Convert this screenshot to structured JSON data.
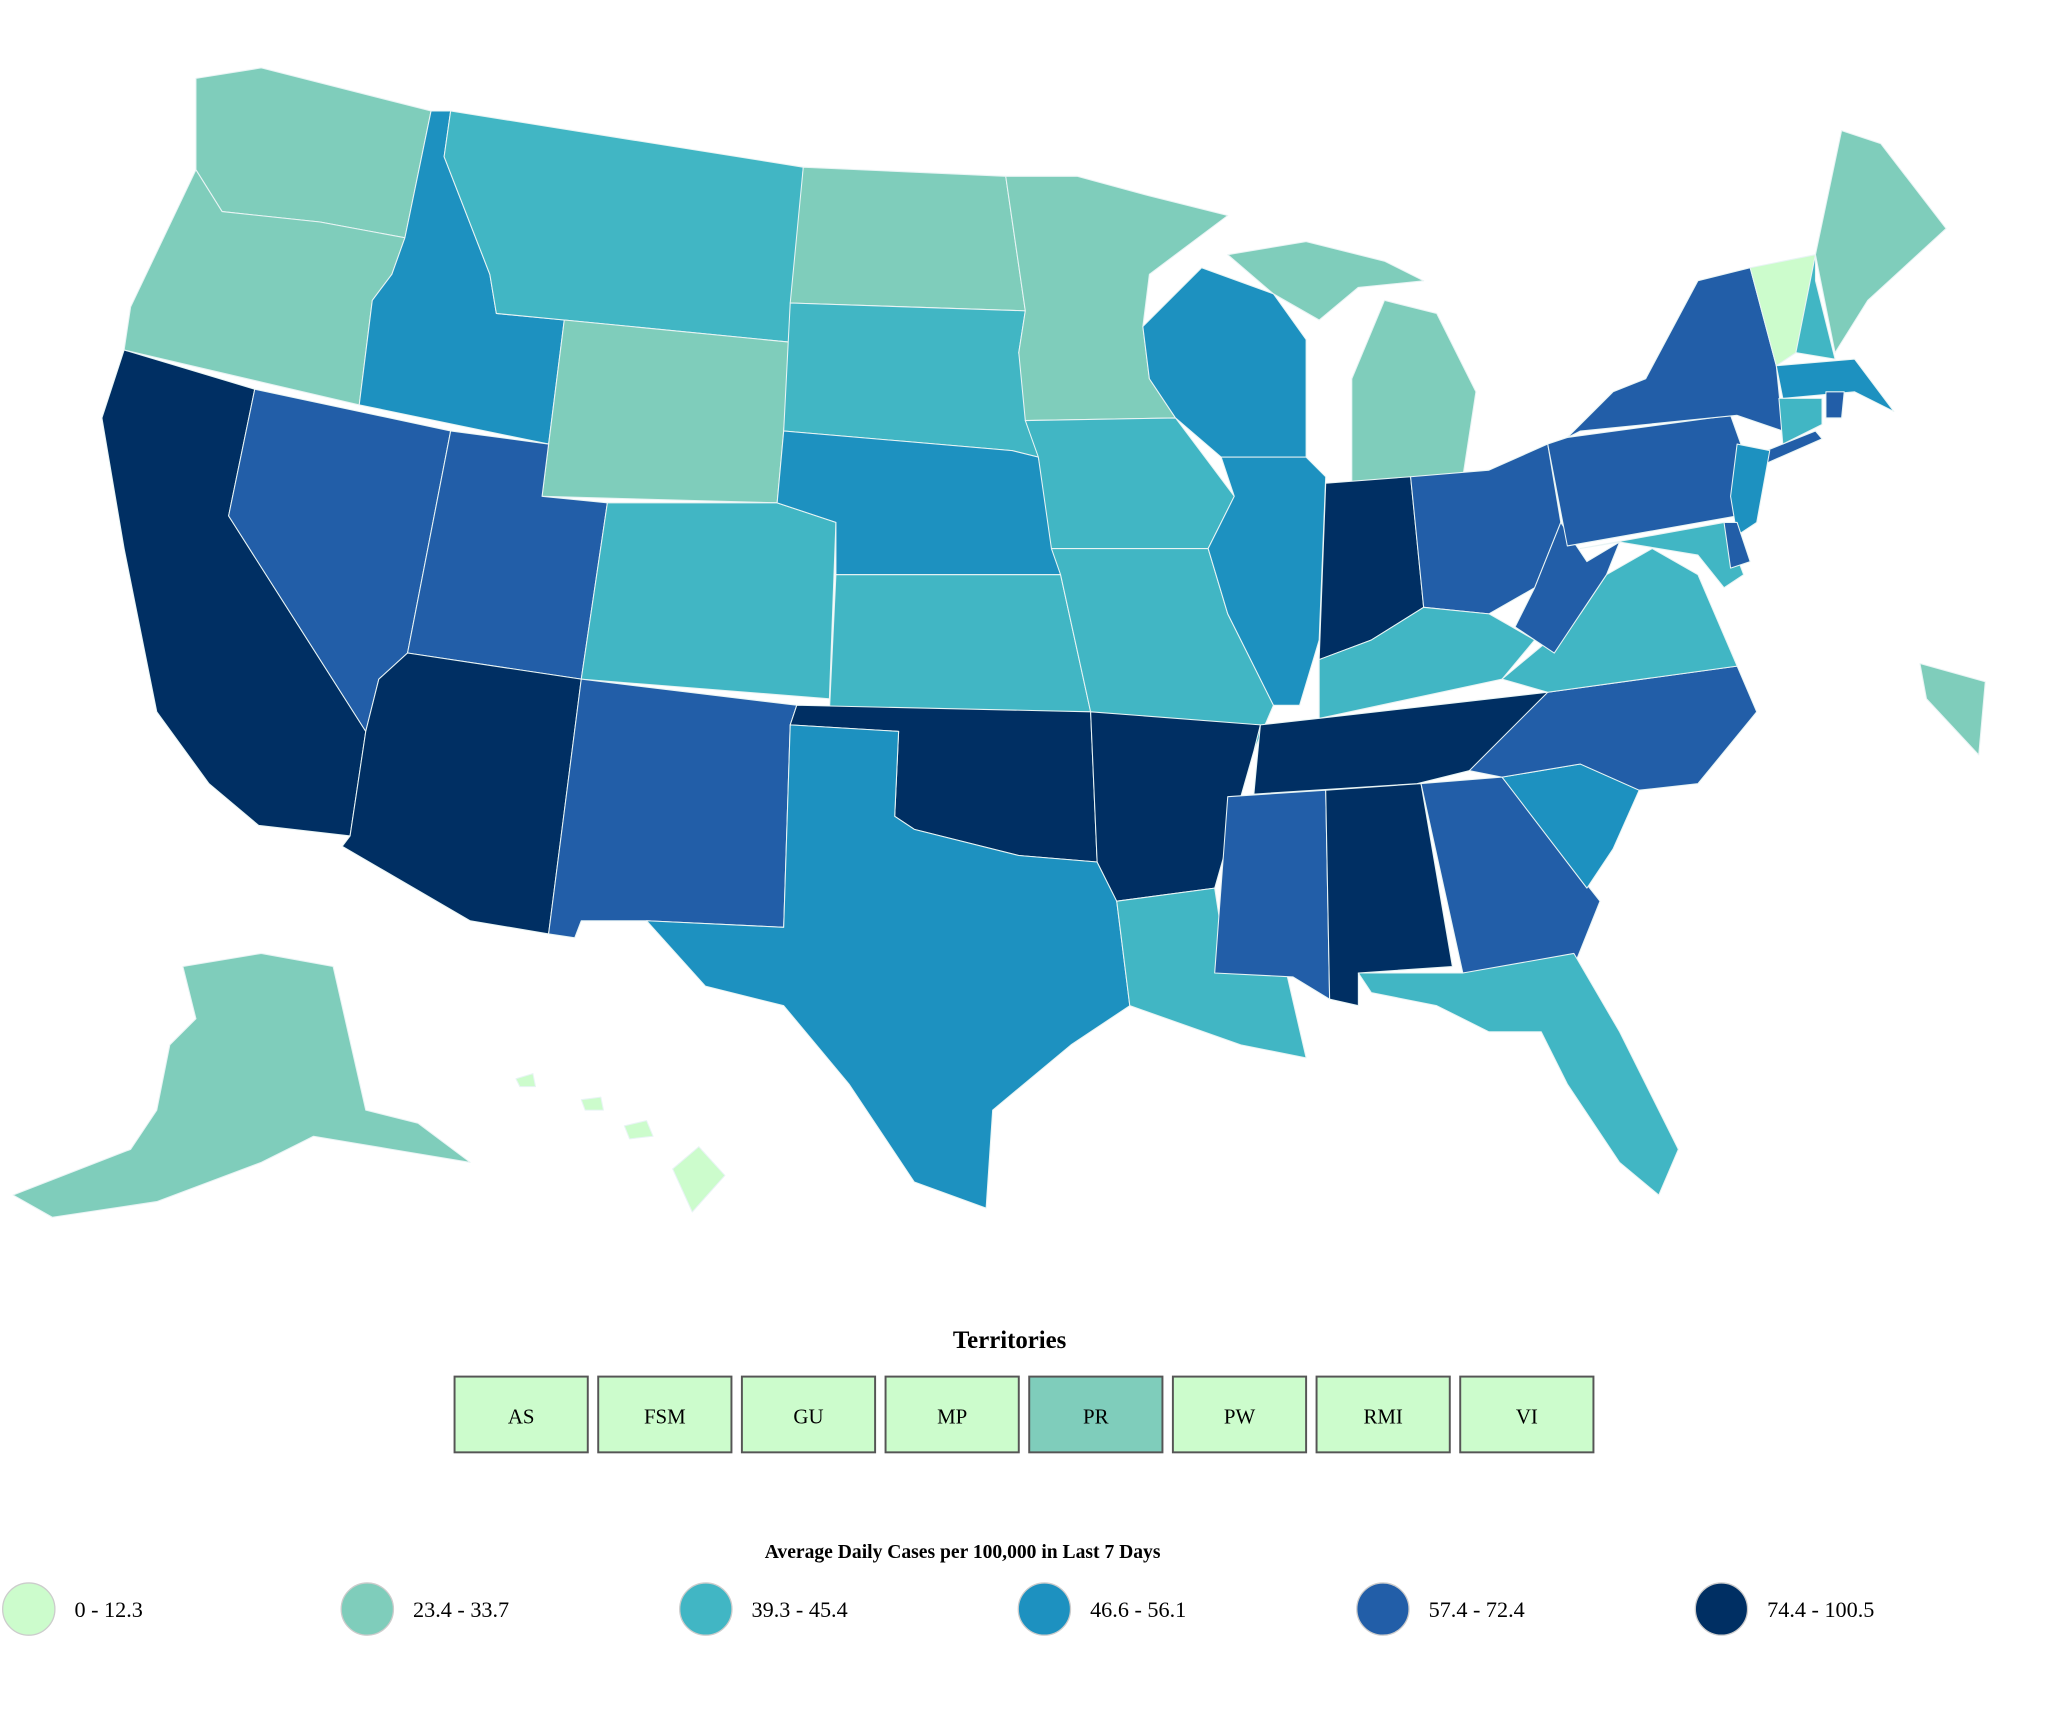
{
  "map": {
    "legend": {
      "title": "Average Daily Cases per 100,000 in Last 7 Days",
      "bins": [
        {
          "label": "0 - 12.3",
          "color": "#ccfccc"
        },
        {
          "label": "23.4 - 33.7",
          "color": "#7fcdbb"
        },
        {
          "label": "39.3 - 45.4",
          "color": "#41b6c4"
        },
        {
          "label": "46.6 - 56.1",
          "color": "#1d91c0"
        },
        {
          "label": "57.4 - 72.4",
          "color": "#225ea8"
        },
        {
          "label": "74.4 - 100.5",
          "color": "#002f63"
        }
      ]
    },
    "territories": {
      "title": "Territories",
      "items": [
        {
          "label": "AS",
          "color": "#ccfccc"
        },
        {
          "label": "FSM",
          "color": "#ccfccc"
        },
        {
          "label": "GU",
          "color": "#ccfccc"
        },
        {
          "label": "MP",
          "color": "#ccfccc"
        },
        {
          "label": "PR",
          "color": "#7fcdbb"
        },
        {
          "label": "PW",
          "color": "#ccfccc"
        },
        {
          "label": "RMI",
          "color": "#ccfccc"
        },
        {
          "label": "VI",
          "color": "#ccfccc"
        }
      ]
    }
  }
}
